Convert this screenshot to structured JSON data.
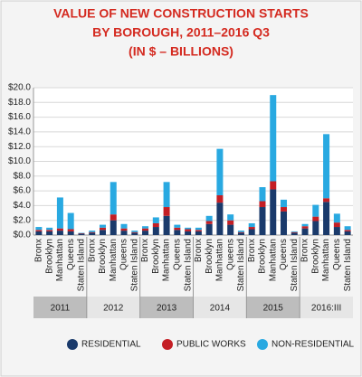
{
  "chart_data": {
    "type": "stacked-bar",
    "title": [
      "VALUE OF NEW CONSTRUCTION STARTS",
      "BY BOROUGH, 2011–2016 Q3",
      "(IN $ – BILLIONS)"
    ],
    "groups": [
      "2011",
      "2012",
      "2013",
      "2014",
      "2015",
      "2016:III"
    ],
    "categories": [
      "Bronx",
      "Brooklyn",
      "Manhattan",
      "Queens",
      "Staten Island",
      "Bronx",
      "Brooklyn",
      "Manhattan",
      "Queens",
      "Staten Island",
      "Bronx",
      "Brooklyn",
      "Manhattan",
      "Queens",
      "Staten Island",
      "Bronx",
      "Brooklyn",
      "Manhattan",
      "Queens",
      "Staten Island",
      "Bronx",
      "Brooklyn",
      "Manhattan",
      "Queens",
      "Staten Island",
      "Bronx",
      "Brooklyn",
      "Manhattan",
      "Queens",
      "Staten Island"
    ],
    "series": [
      {
        "name": "RESIDENTIAL",
        "color": "#1a3a6b",
        "values": [
          0.5,
          0.5,
          0.6,
          0.5,
          0.2,
          0.3,
          0.7,
          2.0,
          0.6,
          0.3,
          0.6,
          1.1,
          2.6,
          0.7,
          0.5,
          0.5,
          1.5,
          4.4,
          1.4,
          0.3,
          0.8,
          3.8,
          6.2,
          3.2,
          0.3,
          0.9,
          1.9,
          4.5,
          1.1,
          0.5
        ]
      },
      {
        "name": "PUBLIC WORKS",
        "color": "#c41e24",
        "values": [
          0.2,
          0.2,
          0.3,
          0.3,
          0.05,
          0.1,
          0.3,
          0.8,
          0.3,
          0.1,
          0.3,
          0.5,
          1.2,
          0.3,
          0.3,
          0.2,
          0.4,
          1.0,
          0.6,
          0.1,
          0.3,
          0.8,
          1.1,
          0.6,
          0.1,
          0.3,
          0.6,
          0.5,
          0.6,
          0.2
        ]
      },
      {
        "name": "NON-RESIDENTIAL",
        "color": "#29a9e1",
        "values": [
          0.4,
          0.3,
          4.2,
          2.2,
          0.05,
          0.2,
          0.4,
          4.4,
          0.6,
          0.2,
          0.3,
          0.8,
          3.4,
          0.4,
          0.2,
          0.3,
          0.7,
          6.3,
          0.8,
          0.2,
          0.5,
          1.9,
          11.7,
          1.0,
          0.1,
          0.3,
          1.6,
          8.7,
          1.2,
          0.5
        ]
      }
    ],
    "ylim": [
      0,
      20
    ],
    "yticks": [
      {
        "value": 0,
        "label": "$0.0"
      },
      {
        "value": 2,
        "label": "$2.0"
      },
      {
        "value": 4,
        "label": "$4.0"
      },
      {
        "value": 6,
        "label": "$6.0"
      },
      {
        "value": 8,
        "label": "$8.0"
      },
      {
        "value": 10,
        "label": "$10.0"
      },
      {
        "value": 12,
        "label": "$12.0"
      },
      {
        "value": 14,
        "label": "$14.0"
      },
      {
        "value": 16,
        "label": "$16.0"
      },
      {
        "value": 18,
        "label": "$18.0"
      },
      {
        "value": 20,
        "label": "$20.0"
      }
    ],
    "grid": true
  }
}
